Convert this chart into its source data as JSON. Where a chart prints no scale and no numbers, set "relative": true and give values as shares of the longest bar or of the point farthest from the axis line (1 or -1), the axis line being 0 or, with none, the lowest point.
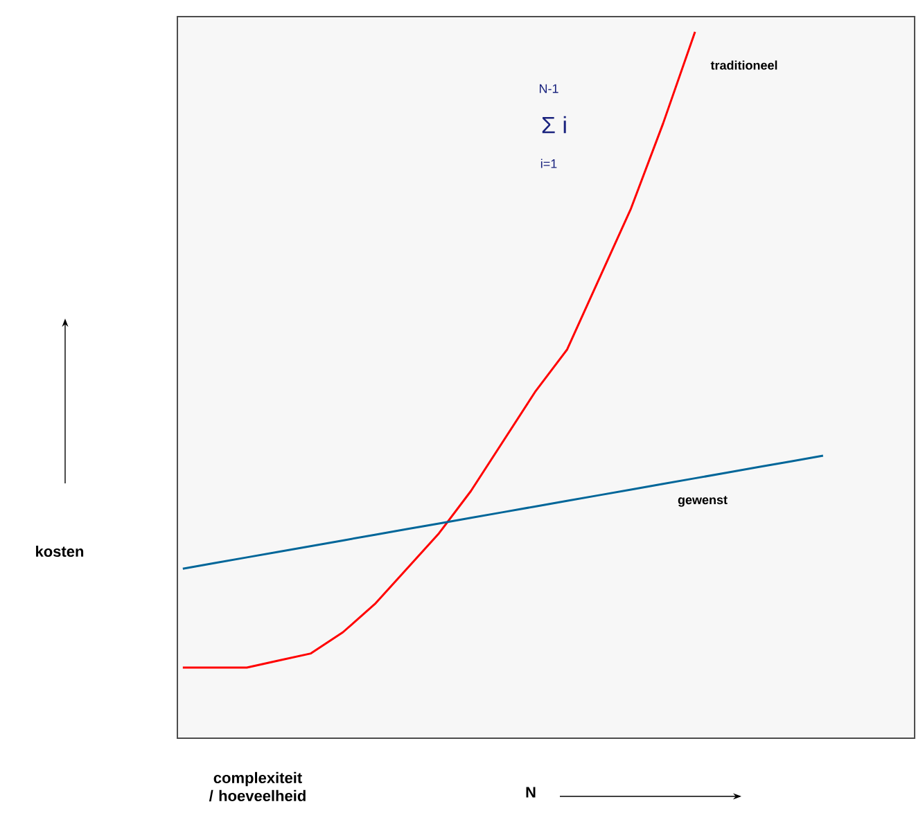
{
  "chart_data": {
    "type": "line",
    "relative": true,
    "legend": false,
    "xlabel": "complexiteit / hoeveelheid",
    "annotations": [
      "N-1",
      "Σ i",
      "i=1",
      "N",
      "kosten"
    ],
    "categories": [
      null,
      null,
      null,
      null,
      null,
      null,
      null,
      null,
      null,
      null,
      null,
      null,
      null,
      null,
      null,
      null,
      null,
      null,
      null,
      null,
      null
    ],
    "series": [
      {
        "name": "traditioneel",
        "color": "#ff0000",
        "values": [
          0.1,
          0.1,
          0.1,
          0.11,
          0.12,
          0.15,
          0.19,
          0.24,
          0.29,
          0.35,
          0.42,
          0.49,
          0.55,
          0.65,
          0.75,
          0.87,
          1.0,
          null,
          null,
          null,
          null
        ]
      },
      {
        "name": "gewenst",
        "color": "#006699",
        "values": [
          0.24,
          0.248,
          0.256,
          0.264,
          0.272,
          0.28,
          0.288,
          0.296,
          0.304,
          0.312,
          0.32,
          0.328,
          0.336,
          0.344,
          0.352,
          0.36,
          0.368,
          0.376,
          0.384,
          0.392,
          0.4
        ]
      }
    ]
  }
}
